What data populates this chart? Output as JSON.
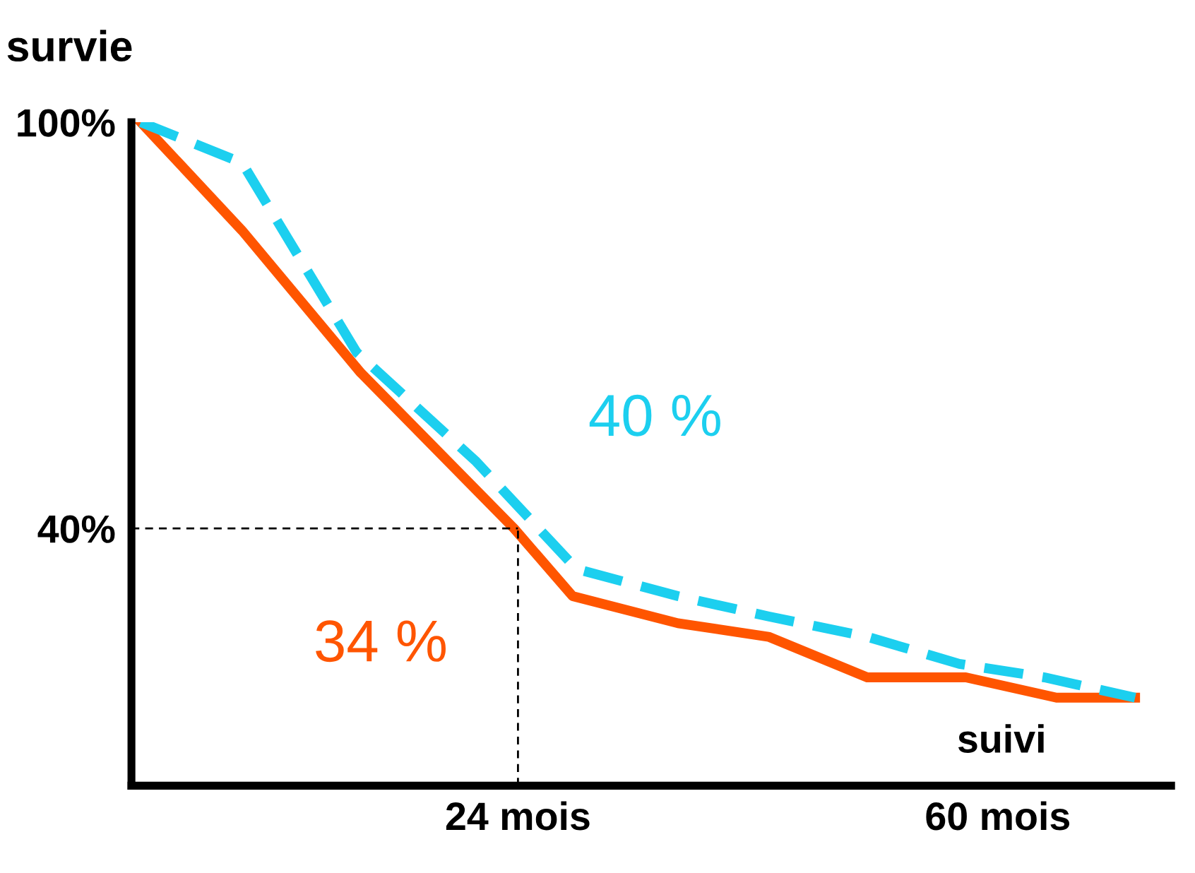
{
  "chart_data": {
    "type": "line",
    "ylabel": "survie",
    "xlabel": "suivi",
    "x": [
      -4.3,
      3.3,
      12.2,
      23.7,
      28.1,
      36,
      42.8,
      50.2,
      57.6,
      64.4,
      70.3
    ],
    "series": [
      {
        "color": "#ff5500",
        "line_style": "solid",
        "values": [
          100,
          84,
          63,
          40,
          30,
          26,
          24,
          18,
          18,
          15,
          15
        ]
      },
      {
        "color": "#1ccfef",
        "line_style": "dashed",
        "x": [
          -4.3,
          3.3,
          11.9,
          20.8,
          28.4,
          36,
          42.8,
          50.2,
          57.1,
          63.5,
          70.3
        ],
        "values": [
          100,
          94,
          66,
          50,
          34,
          30,
          27,
          24,
          20,
          18,
          15
        ]
      }
    ],
    "xlim": [
      -5,
      73
    ],
    "ylim": [
      2,
      100
    ],
    "xticks": [
      {
        "value": 24,
        "label": "24 mois"
      },
      {
        "value": 60,
        "label": "60 mois"
      }
    ],
    "yticks": [
      {
        "value": 40,
        "label": "40%"
      },
      {
        "value": 100,
        "label": "100%"
      }
    ],
    "ref_lines": [
      {
        "axis": "y",
        "value": 40,
        "color": "#000000",
        "line_style": "dashed"
      },
      {
        "axis": "x",
        "value": 24,
        "color": "#000000",
        "line_style": "dashed"
      }
    ],
    "annotations": [
      "34 %",
      "40 %"
    ],
    "marker": "none",
    "grid": false
  }
}
